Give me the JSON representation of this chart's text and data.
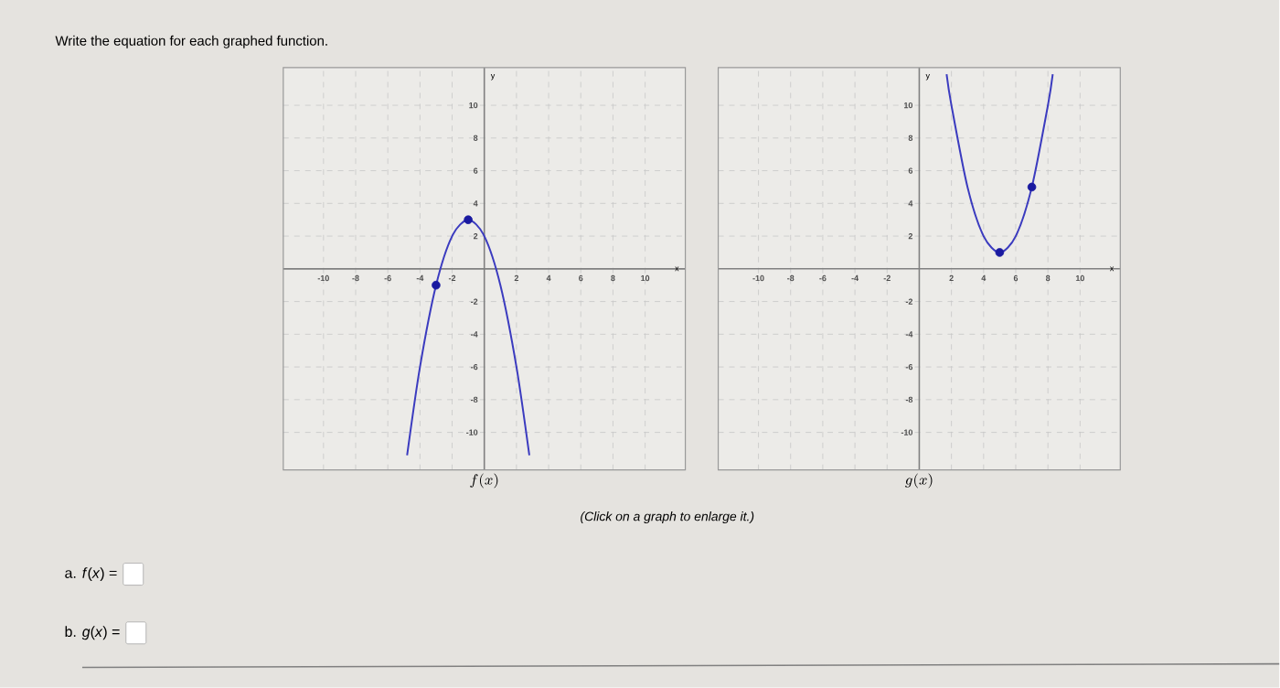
{
  "chart_data": [
    {
      "type": "line",
      "title": "f(x)",
      "xlabel": "x",
      "ylabel": "y",
      "annotations": [
        "Write the equation for each graphed function.",
        "(Click on a graph to enlarge it.)",
        "a. *f*(*x*) =",
        "b. *g*(*x*) ="
      ],
      "xlim": [
        -12.5,
        12.5
      ],
      "ylim": [
        -12.3,
        12.3
      ],
      "xticks": [
        -10,
        -8,
        -6,
        -4,
        -2,
        2,
        4,
        6,
        8,
        10
      ],
      "yticks": [
        -10,
        -8,
        -6,
        -4,
        -2,
        2,
        4,
        6,
        8,
        10
      ],
      "grid": true,
      "series": [
        {
          "type": "line",
          "color": "#3b3bbf",
          "x": [
            -4.8,
            -4,
            -3,
            -2,
            -1,
            0,
            1,
            2,
            2.8
          ],
          "values": [
            -11.4,
            -6,
            -1,
            2,
            3,
            2,
            -1,
            -6,
            -11.4
          ]
        },
        {
          "type": "scatter",
          "marker": "circle",
          "color": "#1a1aa0",
          "x": [
            -1,
            -3
          ],
          "values": [
            3,
            -1
          ]
        }
      ]
    },
    {
      "type": "line",
      "title": "g(x)",
      "xlabel": "x",
      "ylabel": "y",
      "xlim": [
        -12.5,
        12.5
      ],
      "ylim": [
        -12.3,
        12.3
      ],
      "xticks": [
        -10,
        -8,
        -6,
        -4,
        -2,
        2,
        4,
        6,
        8,
        10
      ],
      "yticks": [
        -10,
        -8,
        -6,
        -4,
        -2,
        2,
        4,
        6,
        8,
        10
      ],
      "grid": true,
      "series": [
        {
          "type": "line",
          "color": "#3b3bbf",
          "x": [
            1.7,
            2,
            3,
            4,
            5,
            6,
            7,
            8,
            8.3
          ],
          "values": [
            11.9,
            10,
            5,
            2,
            1,
            2,
            5,
            10,
            11.9
          ]
        },
        {
          "type": "scatter",
          "marker": "circle",
          "color": "#1a1aa0",
          "x": [
            5,
            7
          ],
          "values": [
            1,
            5
          ]
        }
      ]
    }
  ]
}
